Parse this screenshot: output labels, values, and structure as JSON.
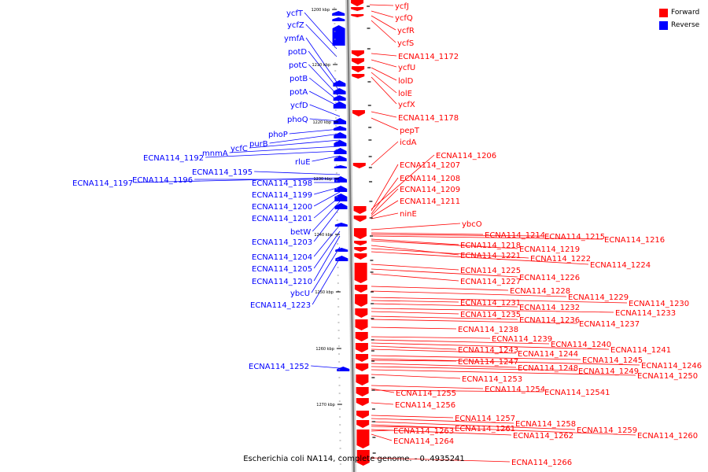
{
  "legend": {
    "forward_label": "Forward",
    "reverse_label": "Reverse",
    "forward_color": "#ff0000",
    "reverse_color": "#0000ff"
  },
  "caption": "Escherichia coli NA114, complete genome. - 0..4935241",
  "ruler": {
    "ticks": [
      "1200 kbp",
      "1210 kbp",
      "1220 kbp",
      "1230 kbp",
      "1240 kbp",
      "1250 kbp",
      "1260 kbp",
      "1270 kbp"
    ]
  },
  "reverse_genes": [
    "ycfT",
    "ycfZ",
    "ymfA",
    "potD",
    "potC",
    "potB",
    "potA",
    "ycfD",
    "phoQ",
    "phoP",
    "purB",
    "ycfC",
    "mnmA",
    "ECNA114_1192",
    "rluE",
    "ECNA114_1195",
    "ECNA114_1197",
    "ECNA114_1196",
    "ECNA114_1198",
    "ECNA114_1199",
    "ECNA114_1200",
    "ECNA114_1201",
    "betW",
    "ECNA114_1203",
    "ECNA114_1204",
    "ECNA114_1205",
    "ECNA114_1210",
    "ybcU",
    "ECNA114_1223",
    "ECNA114_1252"
  ],
  "forward_genes": [
    "ycfJ",
    "ycfQ",
    "ycfR",
    "ycfS",
    "ECNA114_1172",
    "ycfU",
    "lolD",
    "lolE",
    "ycfX",
    "ECNA114_1178",
    "pepT",
    "icdA",
    "ECNA114_1206",
    "ECNA114_1207",
    "ECNA114_1208",
    "ECNA114_1209",
    "ECNA114_1211",
    "ninE",
    "ybcO",
    "ECNA114_1214",
    "ECNA114_1215",
    "ECNA114_1216",
    "ECNA114_1218",
    "ECNA114_1219",
    "ECNA114_1221",
    "ECNA114_1222",
    "ECNA114_1224",
    "ECNA114_1225",
    "ECNA114_1226",
    "ECNA114_1227",
    "ECNA114_1228",
    "ECNA114_1229",
    "ECNA114_1230",
    "ECNA114_1231",
    "ECNA114_1232",
    "ECNA114_1233",
    "ECNA114_1235",
    "ECNA114_1236",
    "ECNA114_1237",
    "ECNA114_1238",
    "ECNA114_1239",
    "ECNA114_1240",
    "ECNA114_1241",
    "ECNA114_1243",
    "ECNA114_1244",
    "ECNA114_1245",
    "ECNA114_1246",
    "ECNA114_1247",
    "ECNA114_1248",
    "ECNA114_1249",
    "ECNA114_1250",
    "ECNA114_1253",
    "ECNA114_1254",
    "ECNA114_1255",
    "ECNA114_12541",
    "ECNA114_1256",
    "ECNA114_1257",
    "ECNA114_1258",
    "ECNA114_1259",
    "ECNA114_1260",
    "ECNA114_1261",
    "ECNA114_1262",
    "ECNA114_1263",
    "ECNA114_1264",
    "ECNA114_1266"
  ]
}
